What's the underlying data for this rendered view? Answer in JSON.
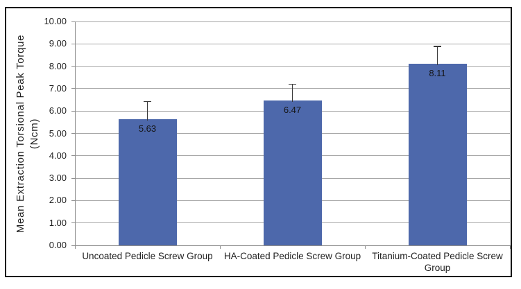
{
  "figure": {
    "background": "#ffffff",
    "frame_border_color": "#141414"
  },
  "chart_data": {
    "type": "bar",
    "title": "",
    "xlabel": "",
    "ylabel": "Mean Extraction Torsional Peak Torque",
    "ylabel_unit": "(Ncm)",
    "categories": [
      "Uncoated Pedicle Screw Group",
      "HA-Coated Pedicle Screw Group",
      "Titanium-Coated Pedicle Screw Group"
    ],
    "values": [
      5.63,
      6.47,
      8.11
    ],
    "value_labels": [
      "5.63",
      "6.47",
      "8.11"
    ],
    "error_plus": [
      0.78,
      0.72,
      0.77
    ],
    "ylim": [
      0,
      10
    ],
    "ytick_step": 1.0,
    "ytick_labels": [
      "0.00",
      "1.00",
      "2.00",
      "3.00",
      "4.00",
      "5.00",
      "6.00",
      "7.00",
      "8.00",
      "9.00",
      "10.00"
    ],
    "grid": true,
    "legend": null,
    "bar_color": "#4d68ab",
    "gridline_color": "#a6a6a6",
    "axis_color": "#8e8e8e",
    "error_bar_color": "#3a3a3a",
    "text_color": "#1f1f1f"
  }
}
